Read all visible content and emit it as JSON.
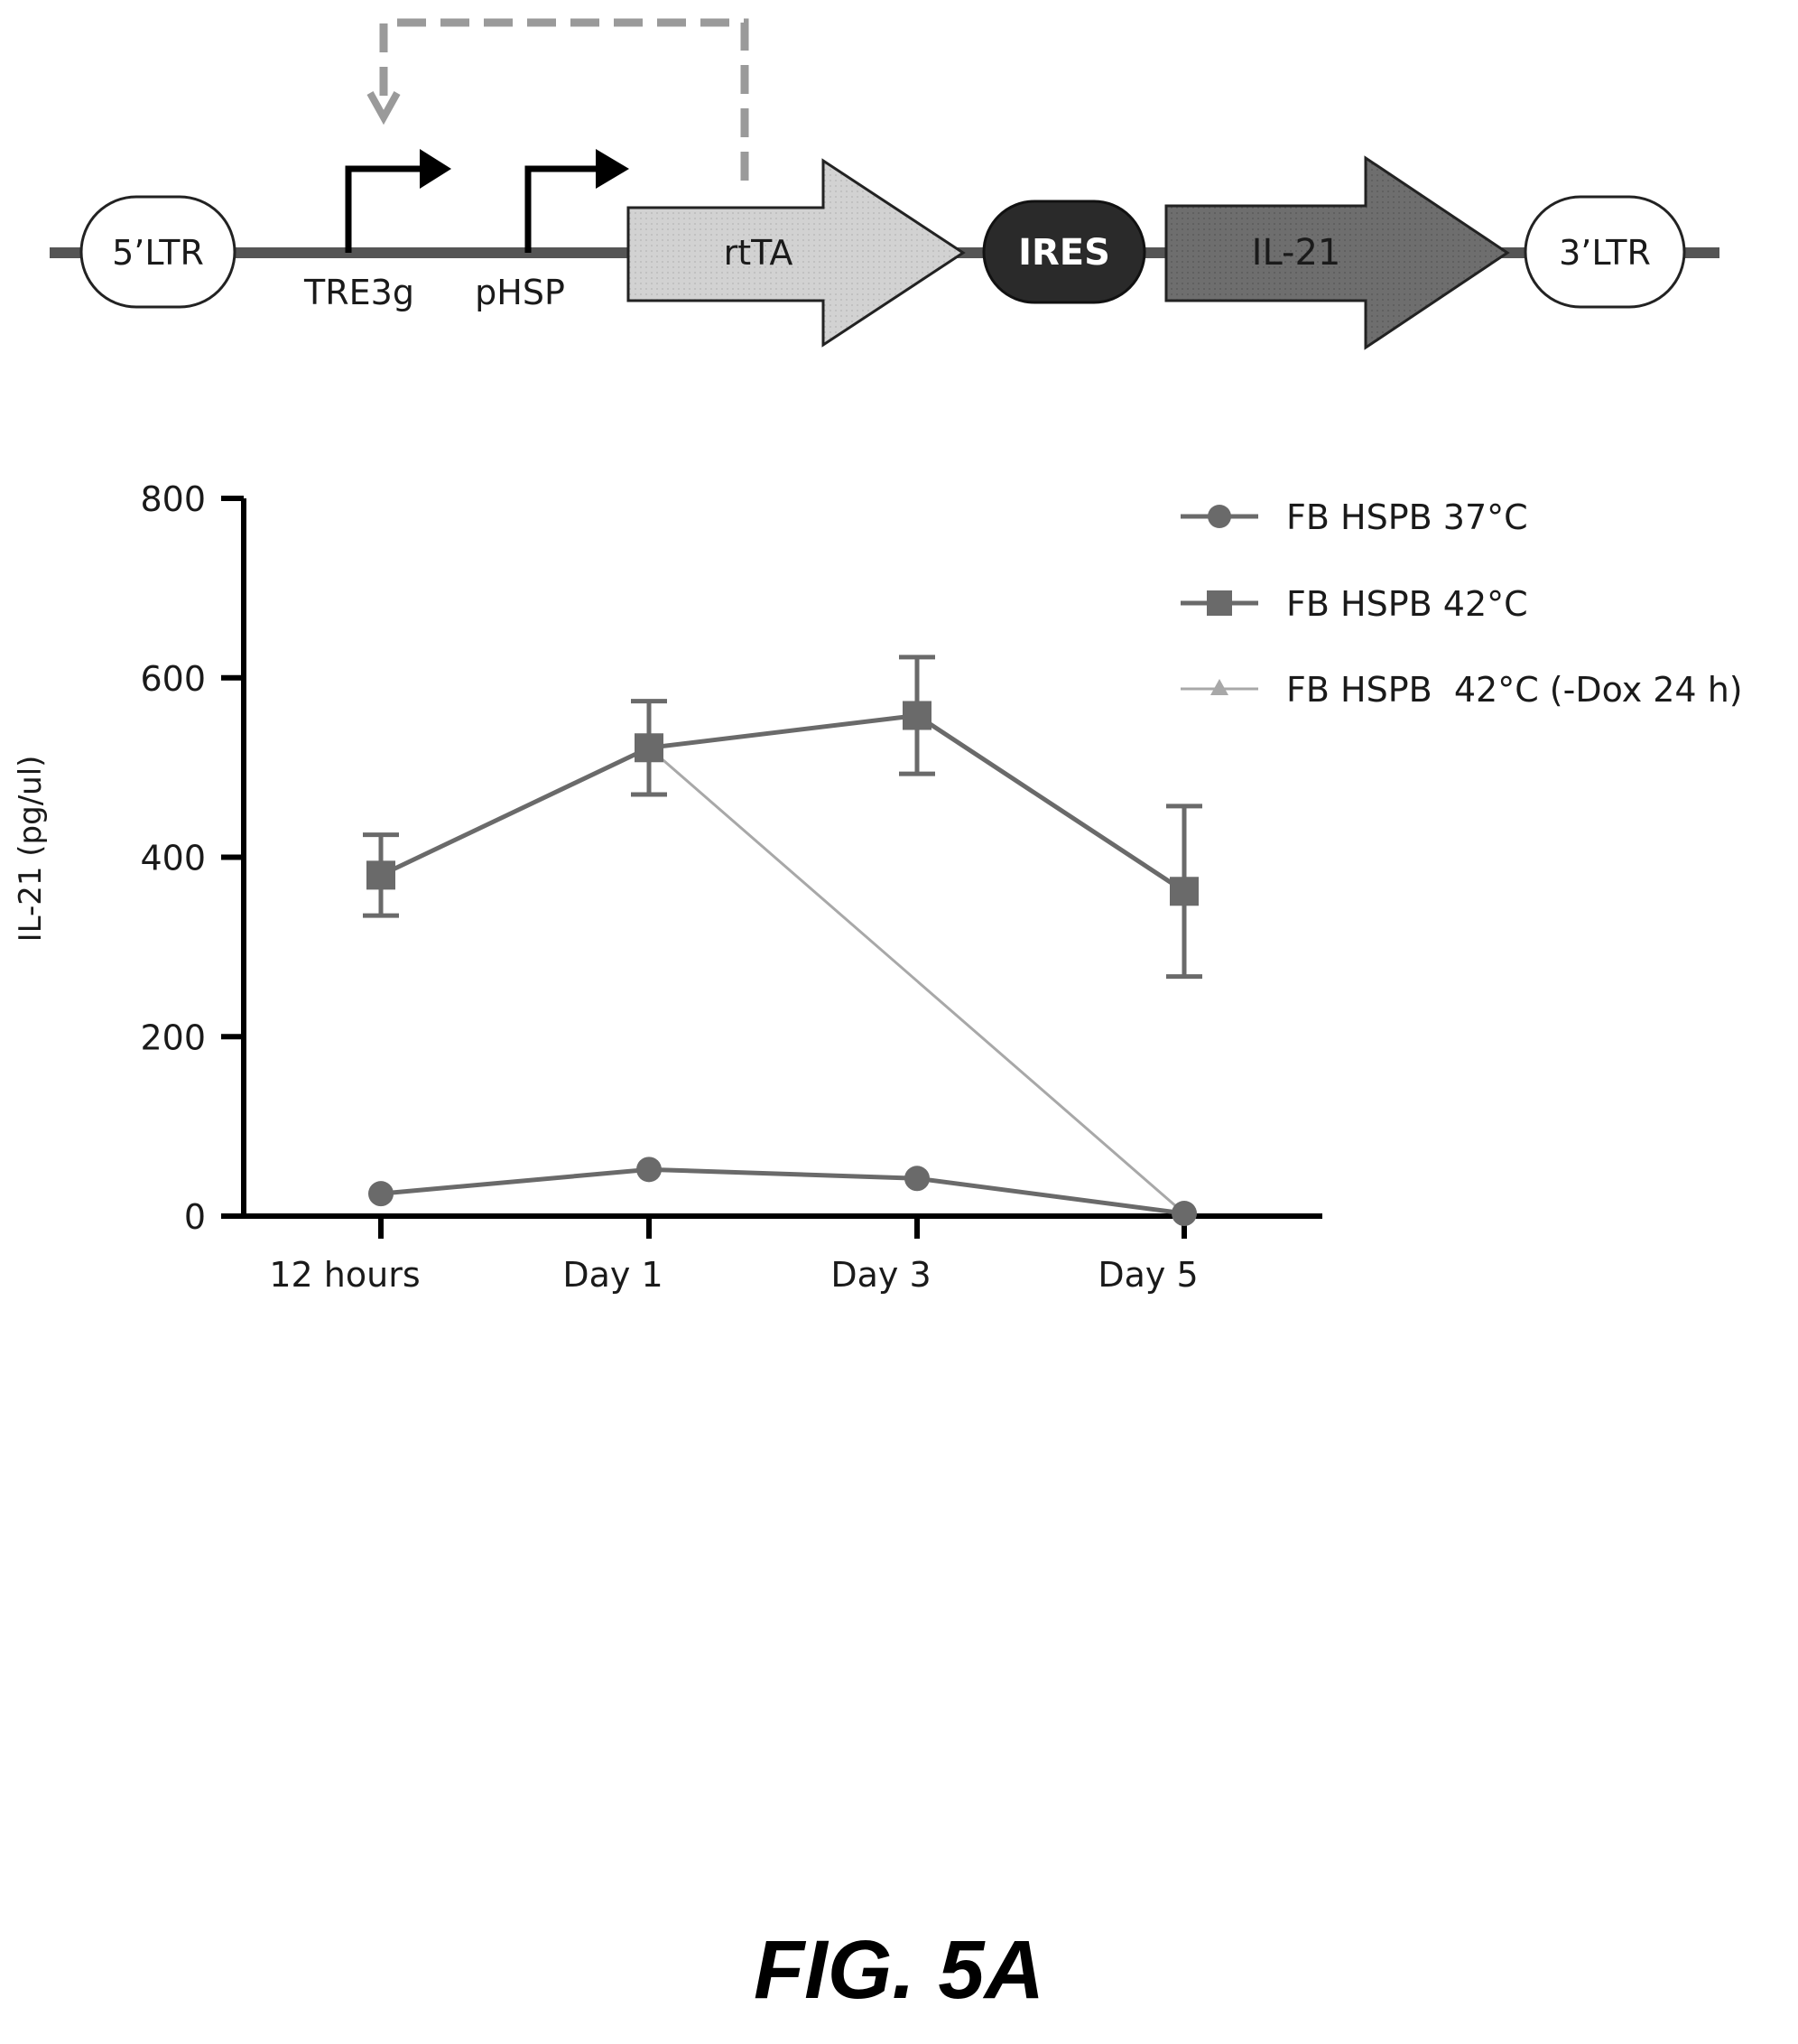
{
  "construct": {
    "ltr5": "5’LTR",
    "tre3g": "TRE3g",
    "phsp": "pHSP",
    "rtta": "rtTA",
    "ires": "IRES",
    "il21": "IL-21",
    "ltr3": "3’LTR",
    "colors": {
      "rtta": "#d2d2d2",
      "ires": "#2a2a2a",
      "il21": "#6e6e6e",
      "feedback": "#9a9a9a"
    }
  },
  "chart_data": {
    "type": "line",
    "categories": [
      "12 hours",
      "Day 1",
      "Day 3",
      "Day 5"
    ],
    "ylabel": "IL-21 (pg/ul)",
    "xlabel": "",
    "title": "",
    "ylim": [
      0,
      800
    ],
    "yticks": [
      0,
      200,
      400,
      600,
      800
    ],
    "legend_position": "top-right",
    "series": [
      {
        "name": "FB HSPB 37°C",
        "marker": "circle",
        "color": "#6a6a6a",
        "values": [
          25,
          52,
          42,
          3
        ],
        "errors": [
          0,
          0,
          0,
          0
        ]
      },
      {
        "name": "FB HSPB 42°C",
        "marker": "square",
        "color": "#6a6a6a",
        "values": [
          380,
          522,
          558,
          362
        ],
        "errors": [
          45,
          52,
          65,
          95
        ]
      },
      {
        "name": "FB HSPB  42°C (-Dox 24 h)",
        "marker": "triangle",
        "color": "#a8a8a8",
        "values": [
          null,
          522,
          null,
          3
        ],
        "errors": [
          0,
          0,
          0,
          0
        ]
      }
    ]
  },
  "figure_label": "FIG. 5A"
}
